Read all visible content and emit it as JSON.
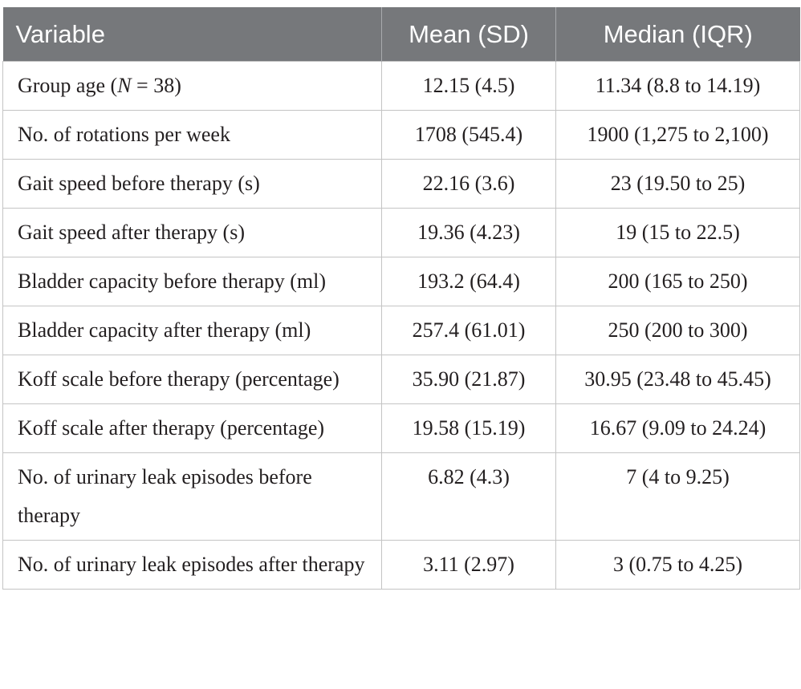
{
  "table": {
    "headers": [
      "Variable",
      "Mean (SD)",
      "Median (IQR)"
    ],
    "rows": [
      {
        "variable_prefix": "Group age (",
        "variable_italic": "N",
        "variable_suffix": " = 38)",
        "mean_sd": "12.15 (4.5)",
        "median_iqr": "11.34 (8.8 to 14.19)"
      },
      {
        "variable": "No. of rotations per week",
        "mean_sd": "1708 (545.4)",
        "median_iqr": "1900 (1,275 to 2,100)"
      },
      {
        "variable": "Gait speed before therapy (s)",
        "mean_sd": "22.16 (3.6)",
        "median_iqr": "23 (19.50 to 25)"
      },
      {
        "variable": "Gait speed after therapy (s)",
        "mean_sd": "19.36 (4.23)",
        "median_iqr": "19 (15 to 22.5)"
      },
      {
        "variable": "Bladder capacity before therapy (ml)",
        "mean_sd": "193.2 (64.4)",
        "median_iqr": "200 (165 to 250)"
      },
      {
        "variable": "Bladder capacity after therapy (ml)",
        "mean_sd": "257.4 (61.01)",
        "median_iqr": "250 (200 to 300)"
      },
      {
        "variable": "Koff scale before therapy (percentage)",
        "mean_sd": "35.90 (21.87)",
        "median_iqr": "30.95 (23.48 to 45.45)"
      },
      {
        "variable": "Koff scale after therapy (percentage)",
        "mean_sd": "19.58 (15.19)",
        "median_iqr": "16.67 (9.09 to 24.24)"
      },
      {
        "variable": "No. of urinary leak episodes before therapy",
        "mean_sd": "6.82 (4.3)",
        "median_iqr": "7 (4 to 9.25)"
      },
      {
        "variable": "No. of urinary leak episodes after therapy",
        "mean_sd": "3.11 (2.97)",
        "median_iqr": "3 (0.75 to 4.25)"
      }
    ]
  }
}
